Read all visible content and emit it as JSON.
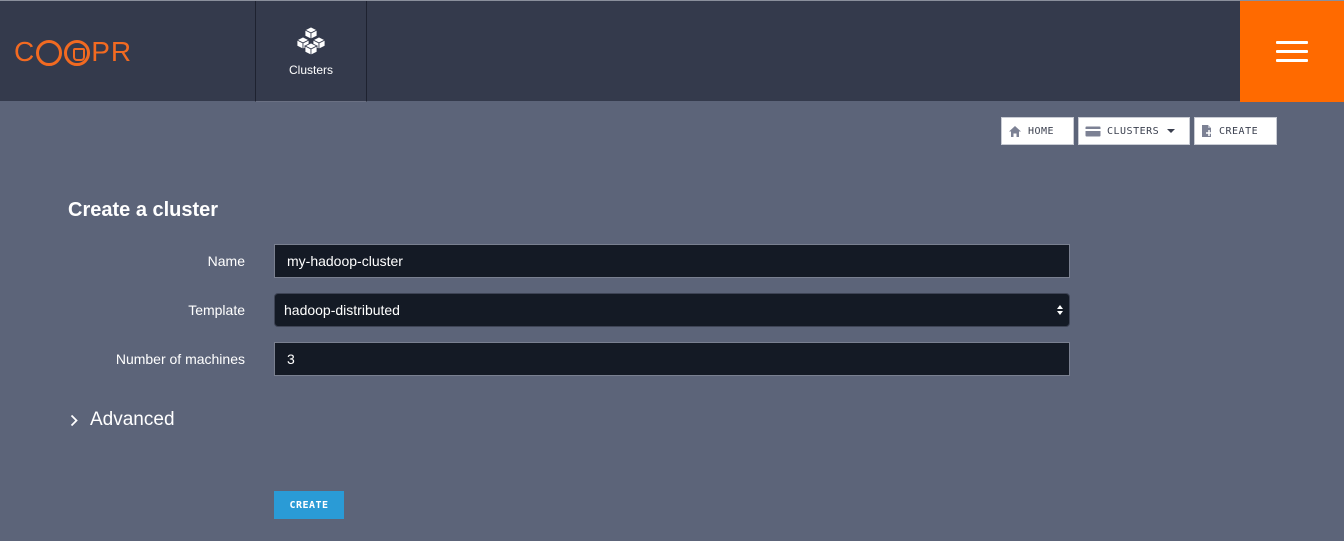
{
  "brand": {
    "name": "COOPR",
    "accent": "#ff6a00",
    "logo_color": "#f26a21"
  },
  "nav": {
    "tabs": [
      {
        "label": "Clusters",
        "icon": "cubes-icon"
      }
    ],
    "menu_icon": "hamburger-icon"
  },
  "breadcrumb": {
    "home": "HOME",
    "clusters": "CLUSTERS",
    "create": "CREATE"
  },
  "form": {
    "title": "Create a cluster",
    "fields": {
      "name": {
        "label": "Name",
        "value": "my-hadoop-cluster"
      },
      "template": {
        "label": "Template",
        "value": "hadoop-distributed"
      },
      "machines": {
        "label": "Number of machines",
        "value": "3"
      }
    },
    "advanced_label": "Advanced",
    "submit_label": "CREATE"
  },
  "colors": {
    "background": "#5c6479",
    "topbar": "#343a4c",
    "input_bg": "#141a25",
    "button": "#2a9bd6"
  }
}
